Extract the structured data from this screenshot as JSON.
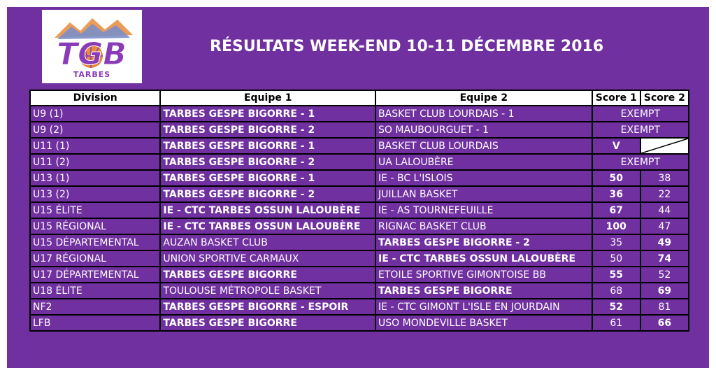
{
  "header": {
    "logo_text": "TGB",
    "logo_subtext": "TARBES",
    "title": "RÉSULTATS WEEK-END 10-11 DÉCEMBRE 2016"
  },
  "colors": {
    "background": "#7030a0",
    "header_cell": "#ffffff",
    "text": "#ffffff"
  },
  "table": {
    "columns": [
      "Division",
      "Equipe 1",
      "Equipe 2",
      "Score 1",
      "Score 2"
    ],
    "rows": [
      {
        "division": "U9 (1)",
        "team1": "TARBES GESPE BIGORRE - 1",
        "team1_bold": true,
        "team2": "BASKET CLUB LOURDAIS - 1",
        "team2_bold": false,
        "exempt": "EXEMPT"
      },
      {
        "division": "U9 (2)",
        "team1": "TARBES GESPE BIGORRE - 2",
        "team1_bold": true,
        "team2": "SO MAUBOURGUET - 1",
        "team2_bold": false,
        "exempt": "EXEMPT"
      },
      {
        "division": "U11 (1)",
        "team1": "TARBES GESPE BIGORRE - 1",
        "team1_bold": true,
        "team2": "BASKET CLUB LOURDAIS",
        "team2_bold": false,
        "score1": "V",
        "score1_bold": true,
        "forfeit": true
      },
      {
        "division": "U11 (2)",
        "team1": "TARBES GESPE BIGORRE - 2",
        "team1_bold": true,
        "team2": "UA LALOUBÈRE",
        "team2_bold": false,
        "exempt": "EXEMPT"
      },
      {
        "division": "U13 (1)",
        "team1": "TARBES GESPE BIGORRE - 1",
        "team1_bold": true,
        "team2": "IE - BC L'ISLOIS",
        "team2_bold": false,
        "score1": "50",
        "score1_bold": true,
        "score2": "38",
        "score2_bold": false
      },
      {
        "division": "U13 (2)",
        "team1": "TARBES GESPE BIGORRE - 2",
        "team1_bold": true,
        "team2": "JUILLAN BASKET",
        "team2_bold": false,
        "score1": "36",
        "score1_bold": true,
        "score2": "22",
        "score2_bold": false
      },
      {
        "division": "U15 ÉLITE",
        "team1": "IE - CTC  TARBES OSSUN LALOUBÈRE",
        "team1_bold": true,
        "team2": "IE - AS TOURNEFEUILLE",
        "team2_bold": false,
        "score1": "67",
        "score1_bold": true,
        "score2": "44",
        "score2_bold": false
      },
      {
        "division": "U15 RÉGIONAL",
        "team1": "IE - CTC TARBES OSSUN LALOUBÈRE",
        "team1_bold": true,
        "team2": "RIGNAC BASKET CLUB",
        "team2_bold": false,
        "score1": "100",
        "score1_bold": true,
        "score2": "47",
        "score2_bold": false
      },
      {
        "division": "U15 DÉPARTEMENTAL",
        "team1": "AUZAN BASKET CLUB",
        "team1_bold": false,
        "team2": "TARBES GESPE BIGORRE - 2",
        "team2_bold": true,
        "score1": "35",
        "score1_bold": false,
        "score2": "49",
        "score2_bold": true
      },
      {
        "division": "U17 RÉGIONAL",
        "team1": "UNION SPORTIVE CARMAUX",
        "team1_bold": false,
        "team2": "IE - CTC TARBES OSSUN LALOUBÈRE",
        "team2_bold": true,
        "score1": "50",
        "score1_bold": false,
        "score2": "74",
        "score2_bold": true
      },
      {
        "division": "U17 DÉPARTEMENTAL",
        "team1": "TARBES GESPE BIGORRE",
        "team1_bold": true,
        "team2": "ETOILE SPORTIVE GIMONTOISE BB",
        "team2_bold": false,
        "score1": "55",
        "score1_bold": true,
        "score2": "52",
        "score2_bold": false
      },
      {
        "division": "U18 ÉLITE",
        "team1": "TOULOUSE MÉTROPOLE BASKET",
        "team1_bold": false,
        "team2": "TARBES GESPE BIGORRE",
        "team2_bold": true,
        "score1": "68",
        "score1_bold": false,
        "score2": "69",
        "score2_bold": true
      },
      {
        "division": "NF2",
        "team1": "TARBES GESPE BIGORRE - ESPOIR",
        "team1_bold": true,
        "team2": "IE - CTC GIMONT L'ISLE EN JOURDAIN",
        "team2_bold": false,
        "score1": "52",
        "score1_bold": true,
        "score2": "81",
        "score2_bold": false
      },
      {
        "division": "LFB",
        "team1": "TARBES GESPE BIGORRE",
        "team1_bold": true,
        "team2": "USO MONDEVILLE BASKET",
        "team2_bold": false,
        "score1": "61",
        "score1_bold": false,
        "score2": "66",
        "score2_bold": true
      }
    ]
  }
}
